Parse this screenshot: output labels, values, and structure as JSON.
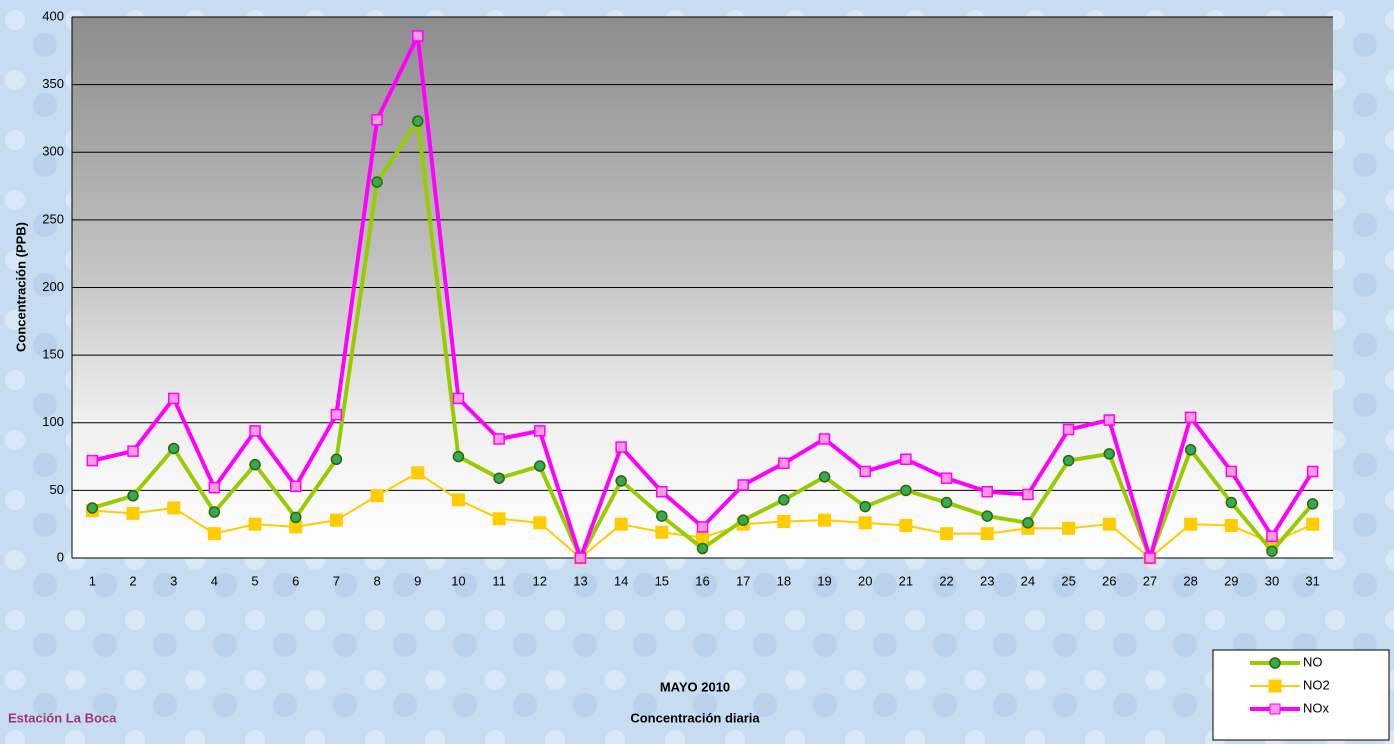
{
  "chart_data": {
    "type": "line",
    "title": "MAYO 2010",
    "subtitle": "Concentración diaria",
    "station": "Estación La Boca",
    "y_label": "Concentración  (PPB)",
    "categories": [
      "1",
      "2",
      "3",
      "4",
      "5",
      "6",
      "7",
      "8",
      "9",
      "10",
      "11",
      "12",
      "13",
      "14",
      "15",
      "16",
      "17",
      "18",
      "19",
      "20",
      "21",
      "22",
      "23",
      "24",
      "25",
      "26",
      "27",
      "28",
      "29",
      "30",
      "31"
    ],
    "series": [
      {
        "name": "NO",
        "color": "#99cc00",
        "marker": "circle",
        "values": [
          37,
          46,
          81,
          34,
          69,
          30,
          73,
          278,
          323,
          75,
          59,
          68,
          0,
          57,
          31,
          7,
          28,
          43,
          60,
          38,
          50,
          41,
          31,
          26,
          72,
          77,
          0,
          80,
          41,
          5,
          40
        ]
      },
      {
        "name": "NO2",
        "color": "#ffcc00",
        "marker": "square",
        "values": [
          35,
          33,
          37,
          18,
          25,
          23,
          28,
          46,
          63,
          43,
          29,
          26,
          0,
          25,
          19,
          15,
          25,
          27,
          28,
          26,
          24,
          18,
          18,
          22,
          22,
          25,
          0,
          25,
          24,
          11,
          25
        ]
      },
      {
        "name": "NOx",
        "color": "#ff00ff",
        "marker": "square",
        "values": [
          72,
          79,
          118,
          52,
          94,
          53,
          106,
          324,
          386,
          118,
          88,
          94,
          0,
          82,
          49,
          23,
          54,
          70,
          88,
          64,
          73,
          59,
          49,
          47,
          95,
          102,
          0,
          104,
          64,
          16,
          64
        ]
      }
    ],
    "ylim": [
      0,
      400
    ],
    "yticks": [
      0,
      50,
      100,
      150,
      200,
      250,
      300,
      350,
      400
    ],
    "grid": true
  }
}
